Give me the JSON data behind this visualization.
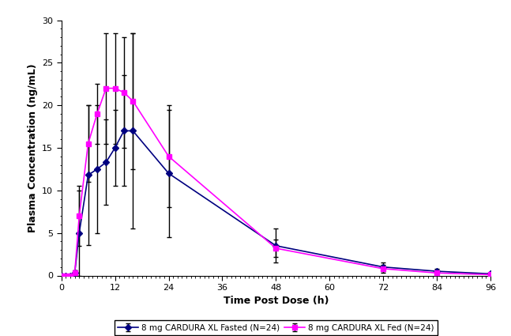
{
  "fasted_x": [
    0,
    1,
    2,
    3,
    4,
    6,
    8,
    10,
    12,
    14,
    16,
    24,
    48,
    72,
    84,
    96
  ],
  "fasted_y": [
    0.0,
    0.0,
    0.0,
    0.3,
    5.0,
    11.8,
    12.5,
    13.3,
    15.0,
    17.0,
    17.0,
    12.0,
    3.5,
    1.0,
    0.5,
    0.2
  ],
  "fasted_sd": [
    0.0,
    0.0,
    0.0,
    0.3,
    5.0,
    8.2,
    7.5,
    5.0,
    4.5,
    6.5,
    11.5,
    7.5,
    2.0,
    0.5,
    0.3,
    0.1
  ],
  "fed_x": [
    0,
    1,
    2,
    3,
    4,
    6,
    8,
    10,
    12,
    14,
    16,
    24,
    48,
    72,
    84,
    96
  ],
  "fed_y": [
    0.0,
    0.0,
    0.0,
    0.3,
    7.0,
    15.5,
    19.0,
    22.0,
    22.0,
    21.5,
    20.5,
    14.0,
    3.2,
    0.8,
    0.3,
    0.1
  ],
  "fed_sd": [
    0.0,
    0.0,
    0.0,
    0.3,
    3.5,
    4.5,
    3.5,
    6.5,
    6.5,
    6.5,
    8.0,
    6.0,
    1.0,
    0.5,
    0.2,
    0.1
  ],
  "fasted_color": "#000080",
  "fed_color": "#FF00FF",
  "xlabel": "Time Post Dose (h)",
  "ylabel": "Plasma Concentration (ng/mL)",
  "ylim": [
    0,
    30
  ],
  "xlim": [
    0,
    96
  ],
  "xticks": [
    0,
    12,
    24,
    36,
    48,
    60,
    72,
    84,
    96
  ],
  "yticks": [
    0,
    5,
    10,
    15,
    20,
    25,
    30
  ],
  "legend_fasted": "8 mg CARDURA XL Fasted (N=24)",
  "legend_fed": "8 mg CARDURA XL Fed (N=24)",
  "elinewidth": 1.0,
  "capsize": 2.5,
  "capthick": 1.0,
  "linewidth": 1.2,
  "markersize_fasted": 4.5,
  "markersize_fed": 5.0,
  "xlabel_fontsize": 9,
  "ylabel_fontsize": 9,
  "tick_labelsize": 8,
  "legend_fontsize": 7.5,
  "fig_width": 6.47,
  "fig_height": 4.25
}
